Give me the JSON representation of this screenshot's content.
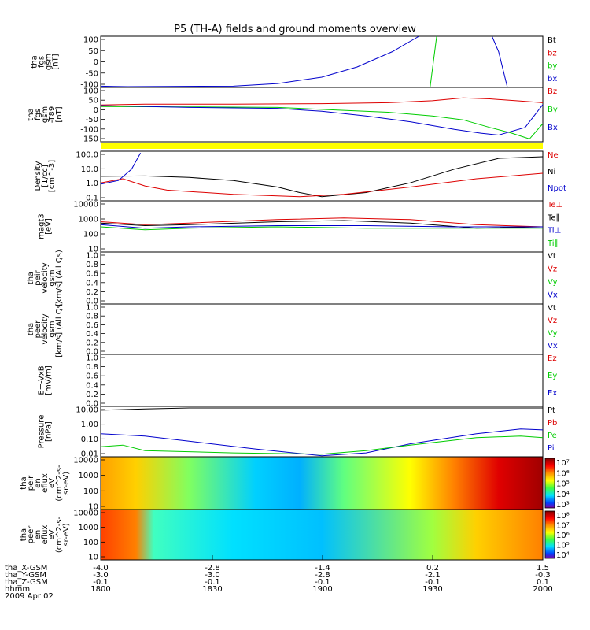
{
  "title": "P5 (TH-A) fields and ground moments overview",
  "colors": {
    "black": "#000000",
    "red": "#dd0000",
    "green": "#00cc00",
    "blue": "#0000cc",
    "yellow": "#ffff00"
  },
  "chart_data": {
    "type": "line",
    "x_ticks": [
      "1800",
      "1830",
      "1900",
      "1930",
      "2000"
    ],
    "orbit_rows": [
      {
        "label": "tha_X-GSM",
        "values": [
          "-4.0",
          "-2.8",
          "-1.4",
          "0.2",
          "1.5"
        ]
      },
      {
        "label": "tha_Y-GSM",
        "values": [
          "-3.0",
          "-3.0",
          "-2.8",
          "-2.1",
          "-0.3"
        ]
      },
      {
        "label": "tha_Z-GSM",
        "values": [
          "-0.1",
          "-0.1",
          "-0.1",
          "-0.1",
          "0.1"
        ]
      },
      {
        "label": "hhmm",
        "values": [
          "1800",
          "1830",
          "1900",
          "1930",
          "2000"
        ]
      }
    ],
    "date": "2009 Apr 02",
    "panels": [
      {
        "id": "fgs",
        "ylabel": [
          "tha",
          "fgs",
          "gsm",
          "[nT]"
        ],
        "scale": "linear",
        "ylim": [
          -100,
          100
        ],
        "ticks": [
          "100",
          "50",
          "0",
          "-50",
          "-100"
        ],
        "legend": [
          {
            "name": "Bt",
            "color": "#000000"
          },
          {
            "name": "bz",
            "color": "#dd0000"
          },
          {
            "name": "by",
            "color": "#00cc00"
          },
          {
            "name": "bx",
            "color": "#0000cc"
          }
        ],
        "series": [
          {
            "color": "#0000cc",
            "points": [
              [
                0,
                -95
              ],
              [
                0.03,
                -96
              ],
              [
                0.06,
                -97
              ],
              [
                0.15,
                -96
              ],
              [
                0.3,
                -95
              ],
              [
                0.4,
                -85
              ],
              [
                0.5,
                -60
              ],
              [
                0.58,
                -20
              ],
              [
                0.66,
                40
              ],
              [
                0.72,
                100
              ]
            ]
          },
          {
            "color": "#0000cc",
            "points": [
              [
                0.885,
                100
              ],
              [
                0.9,
                40
              ],
              [
                0.92,
                -100
              ]
            ]
          },
          {
            "color": "#00cc00",
            "points": [
              [
                0.745,
                -100
              ],
              [
                0.76,
                100
              ]
            ]
          }
        ]
      },
      {
        "id": "fgs-t89",
        "ylabel": [
          "tha",
          "fgs",
          "gsm",
          "-T89",
          "[nT]"
        ],
        "scale": "linear",
        "ylim": [
          -175,
          110
        ],
        "ticks": [
          "100",
          "50",
          "0",
          "-50",
          "-100",
          "-150"
        ],
        "legend": [
          {
            "name": "Bz",
            "color": "#dd0000"
          },
          {
            "name": "By",
            "color": "#00cc00"
          },
          {
            "name": "Bx",
            "color": "#0000cc"
          }
        ],
        "series": [
          {
            "color": "#dd0000",
            "points": [
              [
                0,
                18
              ],
              [
                0.1,
                22
              ],
              [
                0.3,
                22
              ],
              [
                0.5,
                25
              ],
              [
                0.65,
                30
              ],
              [
                0.75,
                40
              ],
              [
                0.82,
                55
              ],
              [
                0.88,
                50
              ],
              [
                0.94,
                40
              ],
              [
                1,
                30
              ]
            ]
          },
          {
            "color": "#00cc00",
            "points": [
              [
                0,
                10
              ],
              [
                0.2,
                8
              ],
              [
                0.4,
                5
              ],
              [
                0.55,
                -10
              ],
              [
                0.65,
                -20
              ],
              [
                0.75,
                -40
              ],
              [
                0.82,
                -60
              ],
              [
                0.88,
                -100
              ],
              [
                0.93,
                -130
              ],
              [
                0.97,
                -160
              ],
              [
                1,
                -80
              ]
            ]
          },
          {
            "color": "#0000cc",
            "points": [
              [
                0,
                15
              ],
              [
                0.2,
                5
              ],
              [
                0.4,
                0
              ],
              [
                0.5,
                -15
              ],
              [
                0.6,
                -40
              ],
              [
                0.7,
                -70
              ],
              [
                0.8,
                -110
              ],
              [
                0.86,
                -130
              ],
              [
                0.9,
                -140
              ],
              [
                0.96,
                -100
              ],
              [
                1,
                20
              ]
            ]
          }
        ]
      },
      {
        "id": "density",
        "ylabel": [
          "Density",
          "[1/cc]",
          "[cm^-3]"
        ],
        "scale": "log",
        "ylim": [
          0.05,
          200
        ],
        "ticks": [
          "100.0",
          "10.0",
          "1.0",
          "0.1"
        ],
        "legend": [
          {
            "name": "Ne",
            "color": "#dd0000"
          },
          {
            "name": "Ni",
            "color": "#000000"
          },
          {
            "name": "Npot",
            "color": "#0000cc"
          }
        ],
        "series": [
          {
            "color": "#000000",
            "points": [
              [
                0,
                3
              ],
              [
                0.1,
                3.2
              ],
              [
                0.2,
                2.5
              ],
              [
                0.3,
                1.5
              ],
              [
                0.4,
                0.5
              ],
              [
                0.45,
                0.2
              ],
              [
                0.5,
                0.1
              ],
              [
                0.6,
                0.2
              ],
              [
                0.7,
                1
              ],
              [
                0.8,
                10
              ],
              [
                0.9,
                60
              ],
              [
                1,
                80
              ]
            ]
          },
          {
            "color": "#dd0000",
            "points": [
              [
                0,
                1
              ],
              [
                0.05,
                2
              ],
              [
                0.1,
                0.6
              ],
              [
                0.15,
                0.3
              ],
              [
                0.3,
                0.15
              ],
              [
                0.45,
                0.1
              ],
              [
                0.55,
                0.15
              ],
              [
                0.7,
                0.5
              ],
              [
                0.85,
                2
              ],
              [
                1,
                5
              ]
            ]
          },
          {
            "color": "#0000cc",
            "points": [
              [
                0,
                0.8
              ],
              [
                0.04,
                1.5
              ],
              [
                0.07,
                10
              ],
              [
                0.09,
                150
              ]
            ]
          }
        ]
      },
      {
        "id": "temperature",
        "ylabel": [
          "magt3",
          "[eV]"
        ],
        "scale": "log",
        "ylim": [
          10,
          10000
        ],
        "ticks": [
          "10000",
          "1000",
          "100",
          "10"
        ],
        "legend": [
          {
            "name": "Te⊥",
            "color": "#dd0000"
          },
          {
            "name": "Te∥",
            "color": "#000000"
          },
          {
            "name": "Ti⊥",
            "color": "#0000cc"
          },
          {
            "name": "Ti∥",
            "color": "#00cc00"
          }
        ],
        "series": [
          {
            "color": "#dd0000",
            "points": [
              [
                0,
                600
              ],
              [
                0.1,
                400
              ],
              [
                0.2,
                500
              ],
              [
                0.4,
                800
              ],
              [
                0.55,
                1000
              ],
              [
                0.7,
                800
              ],
              [
                0.85,
                400
              ],
              [
                1,
                300
              ]
            ]
          },
          {
            "color": "#000000",
            "points": [
              [
                0,
                500
              ],
              [
                0.1,
                350
              ],
              [
                0.2,
                400
              ],
              [
                0.4,
                600
              ],
              [
                0.55,
                700
              ],
              [
                0.7,
                500
              ],
              [
                0.85,
                250
              ],
              [
                1,
                300
              ]
            ]
          },
          {
            "color": "#0000cc",
            "points": [
              [
                0,
                400
              ],
              [
                0.1,
                250
              ],
              [
                0.2,
                300
              ],
              [
                0.4,
                350
              ],
              [
                0.6,
                350
              ],
              [
                0.8,
                300
              ],
              [
                1,
                300
              ]
            ]
          },
          {
            "color": "#00cc00",
            "points": [
              [
                0,
                300
              ],
              [
                0.1,
                200
              ],
              [
                0.2,
                250
              ],
              [
                0.4,
                300
              ],
              [
                0.6,
                250
              ],
              [
                0.8,
                250
              ],
              [
                1,
                250
              ]
            ]
          }
        ]
      },
      {
        "id": "peir-velocity",
        "ylabel": [
          "tha",
          "peir",
          "velocity",
          "gsm",
          "[km/s] (All Qs)"
        ],
        "scale": "linear",
        "ylim": [
          0,
          1
        ],
        "ticks": [
          "1.0",
          "0.8",
          "0.6",
          "0.4",
          "0.2",
          "0.0"
        ],
        "legend": [
          {
            "name": "Vt",
            "color": "#000000"
          },
          {
            "name": "Vz",
            "color": "#dd0000"
          },
          {
            "name": "Vy",
            "color": "#00cc00"
          },
          {
            "name": "Vx",
            "color": "#0000cc"
          }
        ],
        "series": []
      },
      {
        "id": "peer-velocity",
        "ylabel": [
          "tha",
          "peer",
          "velocity",
          "gsm",
          "[km/s] (All Qs)"
        ],
        "scale": "linear",
        "ylim": [
          0,
          1
        ],
        "ticks": [
          "1.0",
          "0.8",
          "0.6",
          "0.4",
          "0.2",
          "0.0"
        ],
        "legend": [
          {
            "name": "Vt",
            "color": "#000000"
          },
          {
            "name": "Vz",
            "color": "#dd0000"
          },
          {
            "name": "Vy",
            "color": "#00cc00"
          },
          {
            "name": "Vx",
            "color": "#0000cc"
          }
        ],
        "series": []
      },
      {
        "id": "efield",
        "ylabel": [
          "E=-VxB",
          "[mV/m]"
        ],
        "scale": "linear",
        "ylim": [
          0,
          1
        ],
        "ticks": [
          "1.0",
          "0.8",
          "0.6",
          "0.4",
          "0.2",
          "0.0"
        ],
        "legend": [
          {
            "name": "Ez",
            "color": "#dd0000"
          },
          {
            "name": "Ey",
            "color": "#00cc00"
          },
          {
            "name": "Ex",
            "color": "#0000cc"
          }
        ],
        "series": []
      },
      {
        "id": "pressure",
        "ylabel": [
          "Pressure",
          "[nPa]"
        ],
        "scale": "log",
        "ylim": [
          0.005,
          40
        ],
        "ticks": [
          "10.00",
          "1.00",
          "0.10",
          "0.01"
        ],
        "legend": [
          {
            "name": "Pt",
            "color": "#000000"
          },
          {
            "name": "Pb",
            "color": "#dd0000"
          },
          {
            "name": "Pe",
            "color": "#00cc00"
          },
          {
            "name": "Pi",
            "color": "#0000cc"
          }
        ],
        "series": [
          {
            "color": "#000000",
            "points": [
              [
                0,
                20
              ],
              [
                0.1,
                25
              ],
              [
                0.2,
                30
              ],
              [
                1,
                30
              ]
            ]
          },
          {
            "color": "#0000cc",
            "points": [
              [
                0,
                0.3
              ],
              [
                0.1,
                0.2
              ],
              [
                0.2,
                0.08
              ],
              [
                0.35,
                0.02
              ],
              [
                0.5,
                0.006
              ],
              [
                0.6,
                0.01
              ],
              [
                0.7,
                0.05
              ],
              [
                0.85,
                0.3
              ],
              [
                0.95,
                0.7
              ],
              [
                1,
                0.6
              ]
            ]
          },
          {
            "color": "#00cc00",
            "points": [
              [
                0,
                0.03
              ],
              [
                0.05,
                0.04
              ],
              [
                0.1,
                0.015
              ],
              [
                0.3,
                0.01
              ],
              [
                0.5,
                0.008
              ],
              [
                0.6,
                0.015
              ],
              [
                0.7,
                0.04
              ],
              [
                0.85,
                0.15
              ],
              [
                0.95,
                0.2
              ],
              [
                1,
                0.15
              ]
            ]
          }
        ]
      },
      {
        "id": "peir-eflux",
        "ylabel": [
          "tha",
          "peir",
          "en",
          "eflux",
          "eV",
          "(cm^2-s-",
          "sr-eV)"
        ],
        "kind": "spectrogram",
        "ticks": [
          "10000",
          "1000",
          "100",
          "10"
        ],
        "colorbar_ticks": [
          "10⁷",
          "10⁶",
          "10⁵",
          "10⁴",
          "10³"
        ]
      },
      {
        "id": "peer-eflux",
        "ylabel": [
          "tha",
          "peer",
          "en",
          "eflux",
          "eV",
          "(cm^2-s-",
          "sr-eV)"
        ],
        "kind": "spectrogram",
        "ticks": [
          "10000",
          "1000",
          "100",
          "10"
        ],
        "colorbar_ticks": [
          "10⁸",
          "10⁷",
          "10⁶",
          "10⁵",
          "10⁴"
        ]
      }
    ]
  }
}
